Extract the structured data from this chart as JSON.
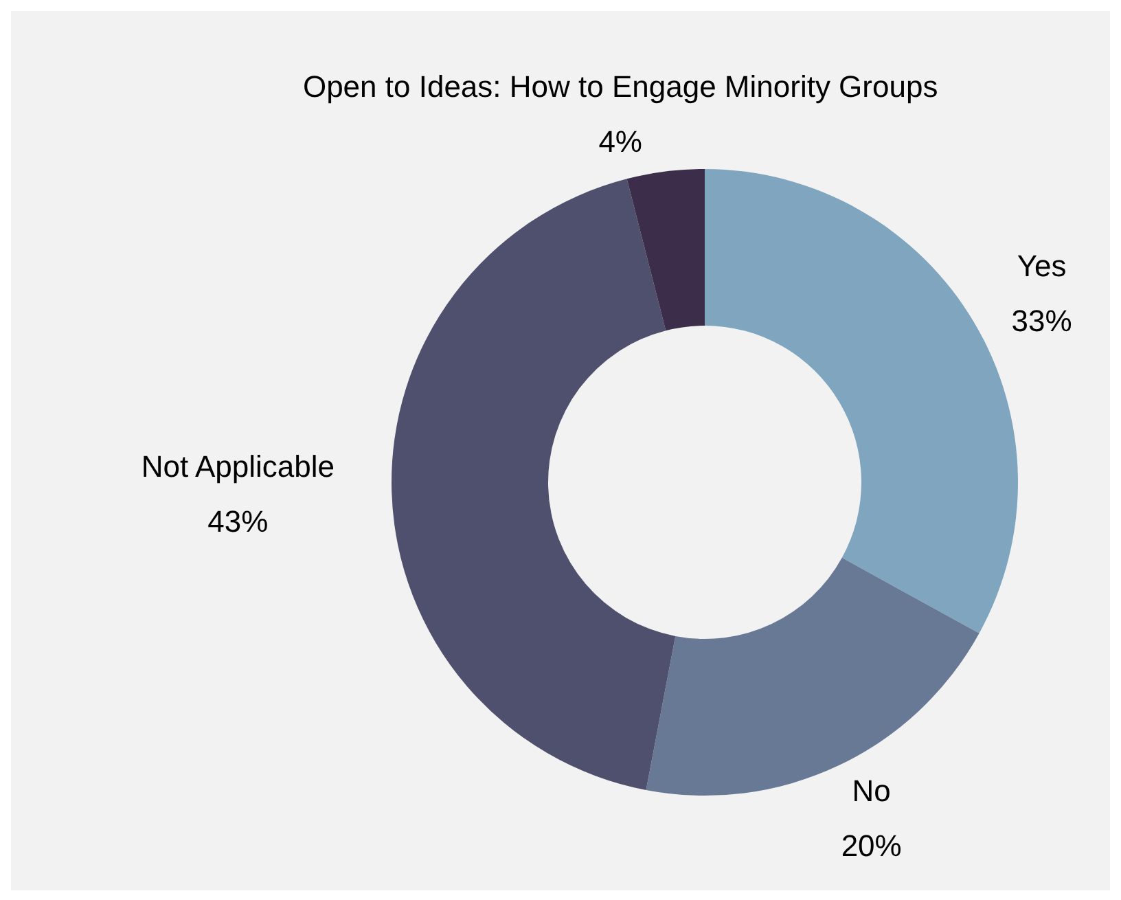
{
  "chart_data": {
    "type": "donut",
    "categories": [
      "Yes",
      "No",
      "Not Applicable",
      "Open to Ideas: How to Engage Minority Groups"
    ],
    "values": [
      33,
      20,
      43,
      4
    ],
    "value_labels": [
      "33%",
      "20%",
      "43%",
      "4%"
    ],
    "colors": [
      "#7fa5bf",
      "#687996",
      "#4f506e",
      "#3c2d4a"
    ],
    "legend": false
  }
}
